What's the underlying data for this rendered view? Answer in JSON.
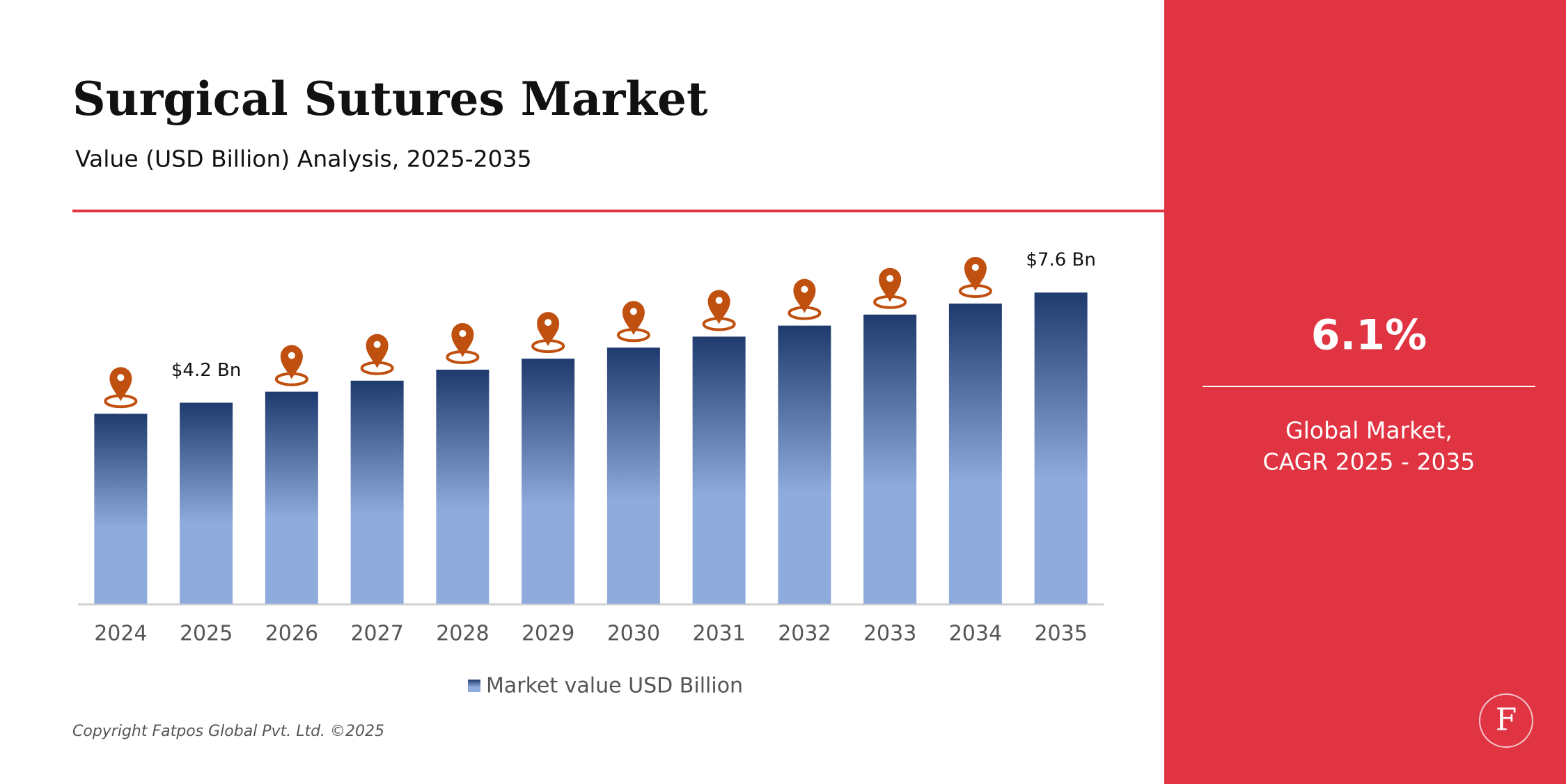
{
  "chart_data": {
    "type": "bar",
    "title": "Surgical Sutures Market",
    "subtitle": "Value (USD Billion) Analysis, 2025-2035",
    "categories": [
      "2024",
      "2025",
      "2026",
      "2027",
      "2028",
      "2029",
      "2030",
      "2031",
      "2032",
      "2033",
      "2034",
      "2035"
    ],
    "series": [
      {
        "name": "Market value USD Billion",
        "color": "#8faadc",
        "values": [
          3.86,
          4.2,
          4.54,
          4.88,
          5.22,
          5.56,
          5.9,
          6.24,
          6.58,
          6.92,
          7.26,
          7.6
        ],
        "value_labels": [
          null,
          "$4.2 Bn",
          null,
          null,
          null,
          null,
          null,
          null,
          null,
          null,
          null,
          "$7.6 Bn"
        ]
      }
    ],
    "ylim": [
      -2,
      9
    ],
    "grid": false,
    "legend": "bottom"
  },
  "panel": {
    "value": "6.1%",
    "caption": [
      "Global Market,",
      "CAGR 2025 - 2035"
    ]
  },
  "copyright": "Copyright Fatpos Global Pvt. Ltd. ©2025",
  "logo": "F"
}
